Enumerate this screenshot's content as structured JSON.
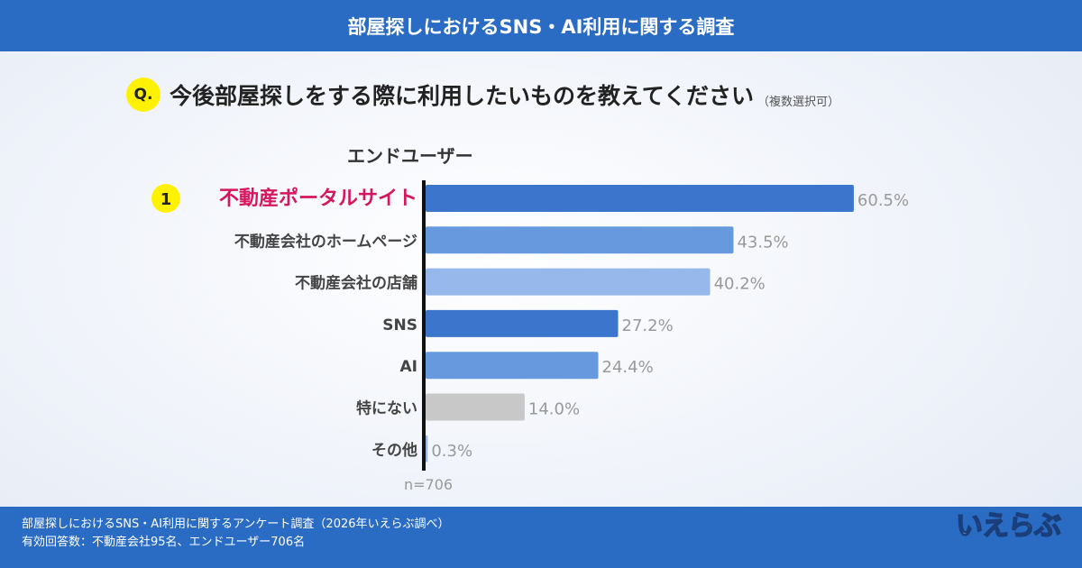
{
  "header": {
    "title": "部屋探しにおけるSNS・AI利用に関する調査"
  },
  "question": {
    "badge": "Q.",
    "text": "今後部屋探しをする際に利用したいものを教えてください",
    "note": "（複数選択可）"
  },
  "segment": "エンドユーザー",
  "sample": "n=706",
  "footer": {
    "line1": "部屋探しにおけるSNS・AI利用に関するアンケート調査（2026年いえらぶ調べ）",
    "line2": "有効回答数：不動産会社95名、エンドユーザー706名",
    "logo": "いえらぶ"
  },
  "chart_data": {
    "type": "bar",
    "orientation": "horizontal",
    "categories": [
      "不動産ポータルサイト",
      "不動産会社のホームページ",
      "不動産会社の店舗",
      "SNS",
      "AI",
      "特にない",
      "その他"
    ],
    "values": [
      60.5,
      43.5,
      40.2,
      27.2,
      24.4,
      14.0,
      0.3
    ],
    "value_labels": [
      "60.5%",
      "43.5%",
      "40.2%",
      "27.2%",
      "24.4%",
      "14.0%",
      "0.3%"
    ],
    "unit": "%",
    "rank_badge": "1",
    "highlight_color": "#d6175f",
    "colors": [
      "#3b76cc",
      "#6699dd",
      "#96b8eb",
      "#3b76cc",
      "#6699dd",
      "#c8c8c8",
      "#96b8eb"
    ]
  }
}
